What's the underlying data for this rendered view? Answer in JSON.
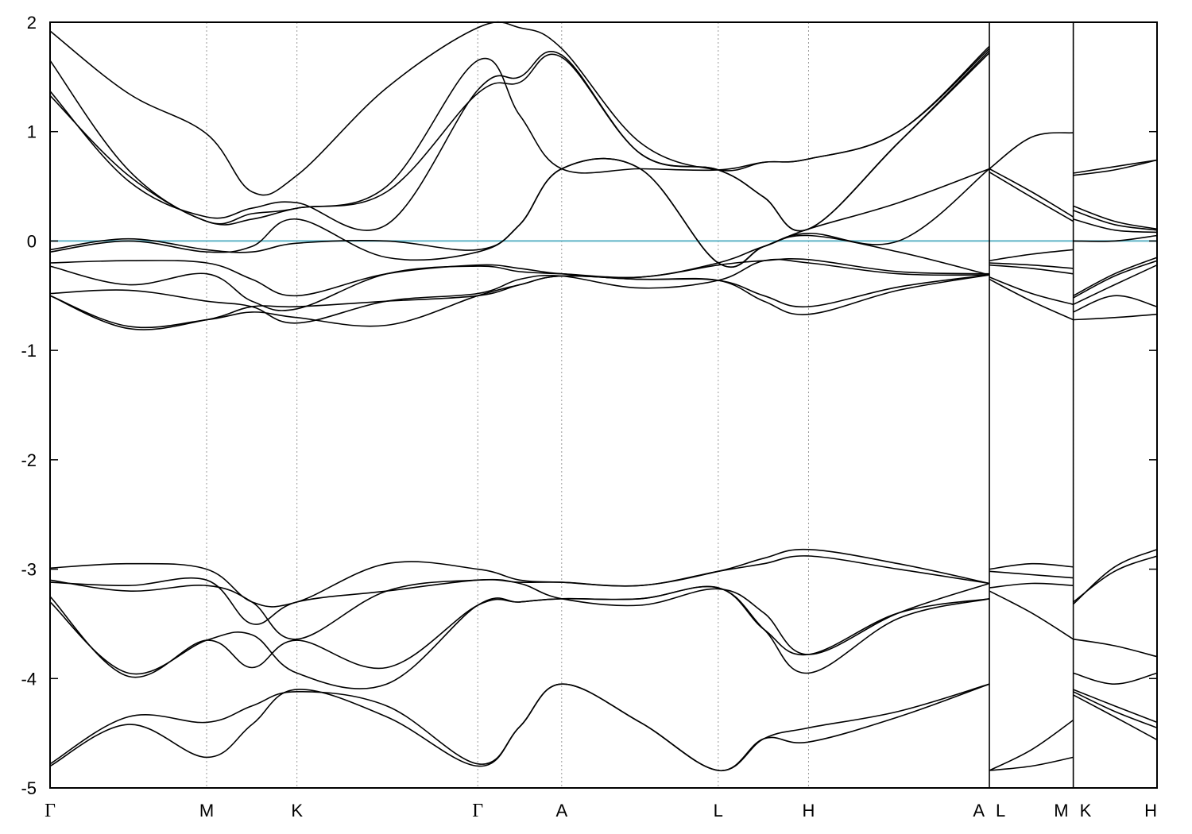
{
  "chart_data": {
    "type": "line",
    "title": "",
    "xlabel": "",
    "ylabel": "",
    "ylim": [
      -5,
      2
    ],
    "yticks": [
      "2",
      "1",
      "0",
      "-1",
      "-2",
      "-3",
      "-4",
      "-5"
    ],
    "grid": "vertical dotted lines at high-symmetry points",
    "fermi_level": 0,
    "colors": {
      "bands": "#000000",
      "fermi": "#5fb4c6",
      "grid": "#9a9a9a"
    },
    "kpoints": [
      {
        "label": "Γ",
        "x": 0
      },
      {
        "label": "M",
        "x": 1.0
      },
      {
        "label": "K",
        "x": 1.577
      },
      {
        "label": "Γ",
        "x": 2.732
      },
      {
        "label": "A",
        "x": 3.268
      },
      {
        "label": "L",
        "x": 4.268
      },
      {
        "label": "H",
        "x": 4.845
      },
      {
        "label": "A",
        "x": 6.0
      },
      {
        "label": "L",
        "x": 6.0
      },
      {
        "label": "M",
        "x": 6.536
      },
      {
        "label": "K",
        "x": 6.536
      },
      {
        "label": "H",
        "x": 7.071
      }
    ],
    "xrange": [
      0,
      7.071
    ],
    "segments": [
      {
        "name": "Γ-M-K-Γ-A-L-H-A",
        "x": [
          0,
          0.5,
          1.0,
          1.29,
          1.577,
          2.15,
          2.732,
          3.0,
          3.268,
          3.77,
          4.268,
          4.56,
          4.845,
          5.42,
          6.0
        ],
        "bands": [
          [
            -4.8,
            -4.42,
            -4.72,
            -4.42,
            -4.1,
            -4.35,
            -4.8,
            -4.44,
            -4.05,
            -4.4,
            -4.84,
            -4.55,
            -4.58,
            -4.35,
            -4.05
          ],
          [
            -4.78,
            -4.35,
            -4.4,
            -4.25,
            -4.12,
            -4.25,
            -4.78,
            -4.44,
            -4.05,
            -4.4,
            -4.84,
            -4.55,
            -4.45,
            -4.3,
            -4.05
          ],
          [
            -3.3,
            -3.95,
            -3.65,
            -3.6,
            -3.95,
            -4.05,
            -3.33,
            -3.3,
            -3.27,
            -3.27,
            -3.17,
            -3.55,
            -3.95,
            -3.45,
            -3.27
          ],
          [
            -3.25,
            -3.98,
            -3.65,
            -3.9,
            -3.65,
            -3.9,
            -3.33,
            -3.3,
            -3.27,
            -3.27,
            -3.17,
            -3.55,
            -3.78,
            -3.4,
            -3.27
          ],
          [
            -3.1,
            -3.2,
            -3.15,
            -3.3,
            -3.64,
            -3.2,
            -3.1,
            -3.13,
            -3.27,
            -3.33,
            -3.18,
            -3.4,
            -3.78,
            -3.4,
            -3.13
          ],
          [
            -3.12,
            -3.15,
            -3.1,
            -3.5,
            -3.3,
            -3.2,
            -3.1,
            -3.12,
            -3.12,
            -3.15,
            -3.02,
            -2.95,
            -2.88,
            -3.0,
            -3.13
          ],
          [
            -2.99,
            -2.95,
            -3.0,
            -3.3,
            -3.3,
            -2.95,
            -3.0,
            -3.1,
            -3.12,
            -3.15,
            -3.02,
            -2.9,
            -2.82,
            -2.95,
            -3.13
          ],
          [
            -0.5,
            -0.8,
            -0.72,
            -0.6,
            -0.6,
            -0.55,
            -0.5,
            -0.4,
            -0.32,
            -0.35,
            -0.36,
            -0.55,
            -0.67,
            -0.45,
            -0.31
          ],
          [
            -0.5,
            -0.78,
            -0.72,
            -0.65,
            -0.7,
            -0.77,
            -0.5,
            -0.4,
            -0.32,
            -0.35,
            -0.36,
            -0.5,
            -0.6,
            -0.42,
            -0.31
          ],
          [
            -0.48,
            -0.45,
            -0.55,
            -0.6,
            -0.75,
            -0.55,
            -0.48,
            -0.35,
            -0.32,
            -0.43,
            -0.36,
            -0.18,
            -0.2,
            -0.3,
            -0.31
          ],
          [
            -0.23,
            -0.4,
            -0.3,
            -0.55,
            -0.62,
            -0.3,
            -0.23,
            -0.28,
            -0.3,
            -0.33,
            -0.22,
            -0.18,
            -0.17,
            -0.28,
            -0.3
          ],
          [
            -0.2,
            -0.18,
            -0.2,
            -0.35,
            -0.5,
            -0.3,
            -0.22,
            -0.25,
            -0.3,
            -0.33,
            -0.2,
            -0.05,
            0.05,
            -0.1,
            -0.31
          ],
          [
            -0.1,
            0.0,
            -0.1,
            -0.05,
            0.2,
            -0.15,
            -0.1,
            0.15,
            0.66,
            0.66,
            -0.2,
            -0.05,
            0.07,
            0.0,
            0.66
          ],
          [
            -0.08,
            0.02,
            -0.08,
            -0.1,
            -0.02,
            0.0,
            -0.08,
            0.15,
            0.66,
            0.66,
            -0.2,
            -0.05,
            0.11,
            0.35,
            0.66
          ],
          [
            1.33,
            0.6,
            0.18,
            0.2,
            0.3,
            0.45,
            1.35,
            1.45,
            1.68,
            0.8,
            0.65,
            0.4,
            0.11,
            0.9,
            1.72
          ],
          [
            1.37,
            0.55,
            0.22,
            0.3,
            0.35,
            0.15,
            1.38,
            1.5,
            1.7,
            0.8,
            0.65,
            0.4,
            0.11,
            0.9,
            1.74
          ],
          [
            1.65,
            0.65,
            0.18,
            0.25,
            0.3,
            0.5,
            1.65,
            1.15,
            0.66,
            0.66,
            0.65,
            0.72,
            0.75,
            1.0,
            1.76
          ],
          [
            1.92,
            1.35,
            0.98,
            0.45,
            0.6,
            1.4,
            1.95,
            1.95,
            1.76,
            0.9,
            0.65,
            0.72,
            0.75,
            1.0,
            1.78
          ]
        ]
      },
      {
        "name": "L-M",
        "x": [
          6.0,
          6.27,
          6.536
        ],
        "bands": [
          [
            -4.84,
            -4.8,
            -4.72
          ],
          [
            -4.84,
            -4.65,
            -4.38
          ],
          [
            -3.2,
            -3.4,
            -3.64
          ],
          [
            -3.17,
            -3.13,
            -3.15
          ],
          [
            -3.0,
            -2.95,
            -2.98
          ],
          [
            -3.02,
            -3.05,
            -3.08
          ],
          [
            -0.35,
            -0.55,
            -0.72
          ],
          [
            -0.33,
            -0.48,
            -0.58
          ],
          [
            -0.22,
            -0.25,
            -0.3
          ],
          [
            -0.2,
            -0.22,
            -0.25
          ],
          [
            -0.18,
            -0.12,
            -0.08
          ],
          [
            0.63,
            0.4,
            0.18
          ],
          [
            0.66,
            0.45,
            0.22
          ],
          [
            0.66,
            0.95,
            0.99
          ]
        ]
      },
      {
        "name": "K-H",
        "x": [
          6.536,
          6.8,
          7.071
        ],
        "bands": [
          [
            -4.15,
            -4.35,
            -4.56
          ],
          [
            -4.12,
            -4.3,
            -4.45
          ],
          [
            -4.1,
            -4.25,
            -4.4
          ],
          [
            -3.95,
            -4.05,
            -3.95
          ],
          [
            -3.64,
            -3.7,
            -3.8
          ],
          [
            -3.32,
            -2.98,
            -2.82
          ],
          [
            -3.3,
            -3.02,
            -2.88
          ],
          [
            -0.72,
            -0.7,
            -0.67
          ],
          [
            -0.65,
            -0.5,
            -0.6
          ],
          [
            -0.58,
            -0.4,
            -0.22
          ],
          [
            -0.52,
            -0.32,
            -0.18
          ],
          [
            -0.5,
            -0.3,
            -0.15
          ],
          [
            0.0,
            0.0,
            0.05
          ],
          [
            0.2,
            0.1,
            0.08
          ],
          [
            0.28,
            0.15,
            0.1
          ],
          [
            0.32,
            0.18,
            0.11
          ],
          [
            0.6,
            0.65,
            0.74
          ],
          [
            0.62,
            0.68,
            0.74
          ]
        ]
      }
    ]
  }
}
